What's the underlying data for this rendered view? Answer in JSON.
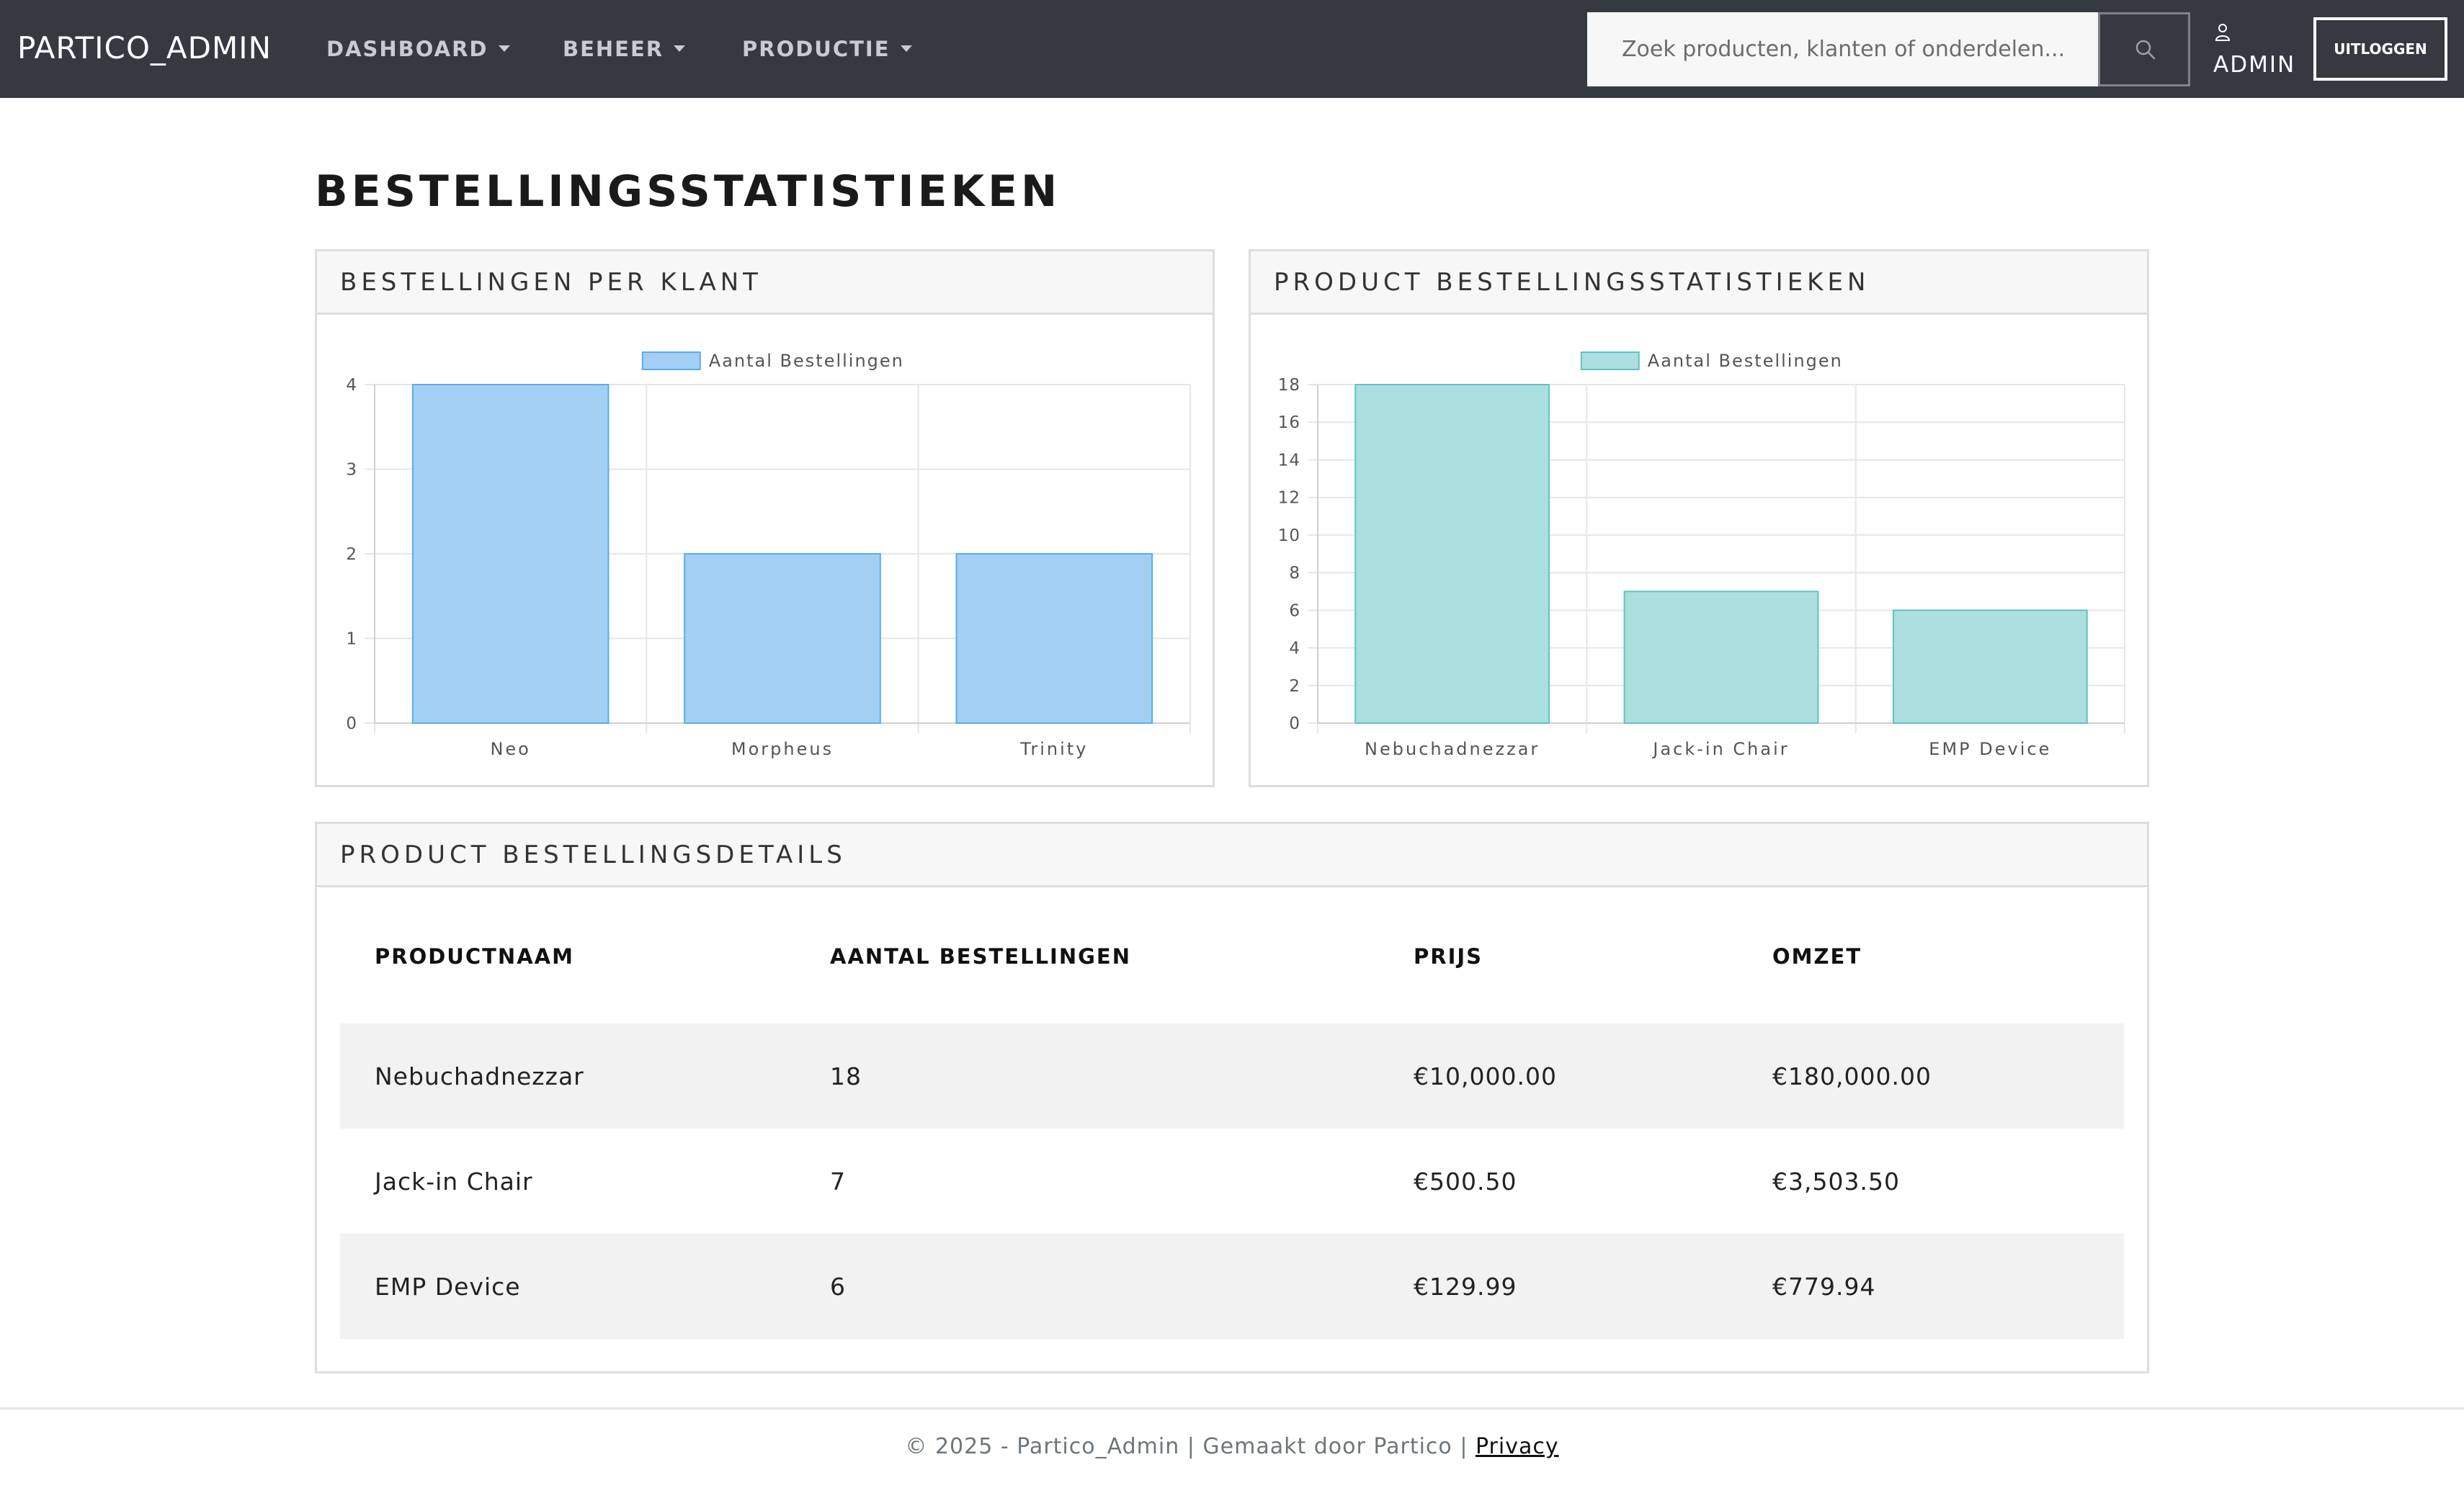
{
  "navbar": {
    "brand": "PARTICO_ADMIN",
    "menu": [
      {
        "label": "DASHBOARD"
      },
      {
        "label": "BEHEER"
      },
      {
        "label": "PRODUCTIE"
      }
    ],
    "search_placeholder": "Zoek producten, klanten of onderdelen...",
    "search_icon": "search-icon",
    "user_icon": "user-icon",
    "user_label": "ADMIN",
    "logout_label": "UITLOGGEN"
  },
  "page": {
    "title": "BESTELLINGSSTATISTIEKEN"
  },
  "customer_card": {
    "title": "BESTELLINGEN PER KLANT"
  },
  "product_card": {
    "title": "PRODUCT BESTELLINGSSTATISTIEKEN"
  },
  "chart_data": [
    {
      "type": "bar",
      "title": "BESTELLINGEN PER KLANT",
      "categories": [
        "Neo",
        "Morpheus",
        "Trinity"
      ],
      "series": [
        {
          "name": "Aantal Bestellingen",
          "values": [
            4,
            2,
            2
          ]
        }
      ],
      "ylim": [
        0,
        4
      ],
      "yticks": [
        0,
        1,
        2,
        3,
        4
      ],
      "fill": "#a3cff5",
      "stroke": "#5aade9",
      "legend": "top",
      "grid": true
    },
    {
      "type": "bar",
      "title": "PRODUCT BESTELLINGSSTATISTIEKEN",
      "categories": [
        "Nebuchadnezzar",
        "Jack-in Chair",
        "EMP Device"
      ],
      "series": [
        {
          "name": "Aantal Bestellingen",
          "values": [
            18,
            7,
            6
          ]
        }
      ],
      "ylim": [
        0,
        18
      ],
      "yticks": [
        0,
        2,
        4,
        6,
        8,
        10,
        12,
        14,
        16,
        18
      ],
      "fill": "#acdfdf",
      "stroke": "#62c2c2",
      "legend": "top",
      "grid": true
    }
  ],
  "details": {
    "title": "PRODUCT BESTELLINGSDETAILS",
    "headers": [
      "PRODUCTNAAM",
      "AANTAL BESTELLINGEN",
      "PRIJS",
      "OMZET"
    ],
    "rows": [
      [
        "Nebuchadnezzar",
        "18",
        "€10,000.00",
        "€180,000.00"
      ],
      [
        "Jack-in Chair",
        "7",
        "€500.50",
        "€3,503.50"
      ],
      [
        "EMP Device",
        "6",
        "€129.99",
        "€779.94"
      ]
    ]
  },
  "footer": {
    "text": "© 2025 - Partico_Admin | Gemaakt door Partico | ",
    "privacy_label": "Privacy"
  }
}
